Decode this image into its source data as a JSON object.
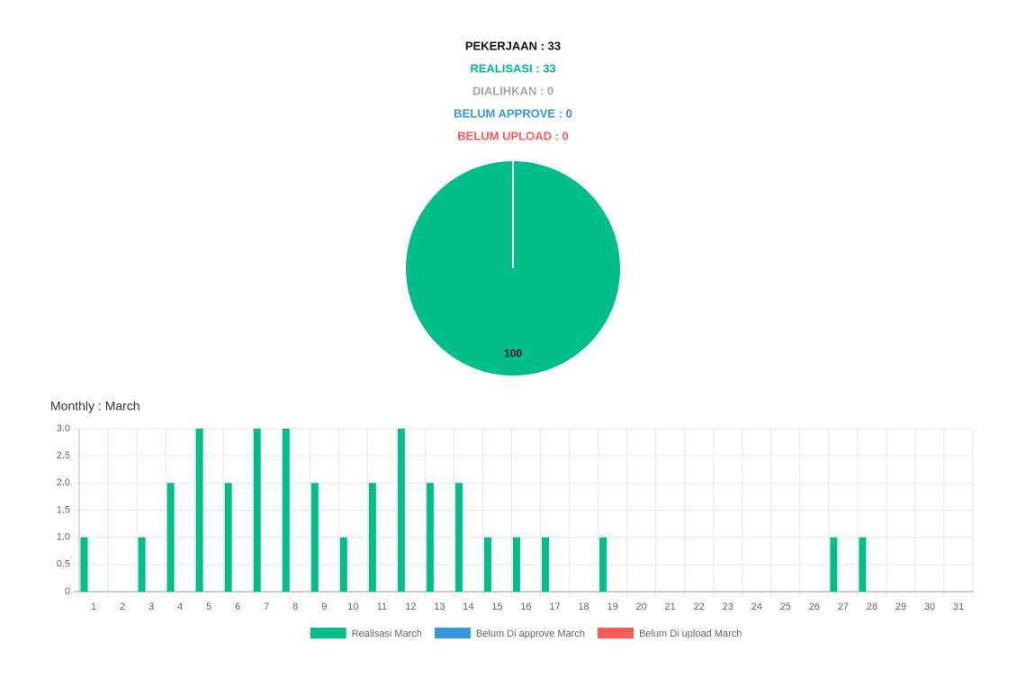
{
  "header": {
    "lines": [
      {
        "text": "PEKERJAAN : 33",
        "color": "#111111"
      },
      {
        "text": "REALISASI : 33",
        "color": "#00be8a"
      },
      {
        "text": "DIALIHKAN : 0",
        "color": "#a6a6a6"
      },
      {
        "text": "BELUM APPROVE : 0",
        "color": "#3498db"
      },
      {
        "text": "BELUM UPLOAD : 0",
        "color": "#ff5a5a"
      }
    ]
  },
  "chart_data": [
    {
      "type": "pie",
      "values": [
        100
      ],
      "colors": [
        "#00be8a"
      ]
    },
    {
      "type": "bar",
      "title": "Monthly : March",
      "categories": [
        "1",
        "2",
        "3",
        "4",
        "5",
        "6",
        "7",
        "8",
        "9",
        "10",
        "11",
        "12",
        "13",
        "14",
        "15",
        "16",
        "17",
        "18",
        "19",
        "20",
        "21",
        "22",
        "23",
        "24",
        "25",
        "26",
        "27",
        "28",
        "29",
        "30",
        "31"
      ],
      "series": [
        {
          "name": "Realisasi March",
          "color": "#00be8a",
          "values": [
            1,
            0,
            1,
            2,
            3,
            2,
            3,
            3,
            2,
            1,
            2,
            3,
            2,
            2,
            1,
            1,
            1,
            0,
            1,
            0,
            0,
            0,
            0,
            0,
            0,
            0,
            1,
            1,
            0,
            0,
            0
          ]
        },
        {
          "name": "Belum Di approve March",
          "color": "#3498db",
          "values": [
            0,
            0,
            0,
            0,
            0,
            0,
            0,
            0,
            0,
            0,
            0,
            0,
            0,
            0,
            0,
            0,
            0,
            0,
            0,
            0,
            0,
            0,
            0,
            0,
            0,
            0,
            0,
            0,
            0,
            0,
            0
          ]
        },
        {
          "name": "Belum Di upload March",
          "color": "#ff5a5a",
          "values": [
            0,
            0,
            0,
            0,
            0,
            0,
            0,
            0,
            0,
            0,
            0,
            0,
            0,
            0,
            0,
            0,
            0,
            0,
            0,
            0,
            0,
            0,
            0,
            0,
            0,
            0,
            0,
            0,
            0,
            0,
            0
          ]
        }
      ],
      "ylim": [
        0,
        3
      ],
      "yticks": [
        0,
        0.5,
        {
          "value": 1,
          "label": "1.0"
        },
        1.5,
        {
          "value": 2,
          "label": "2.0"
        },
        2.5,
        {
          "value": 3,
          "label": "3.0"
        }
      ],
      "grid": true,
      "legend": "bottom"
    }
  ]
}
